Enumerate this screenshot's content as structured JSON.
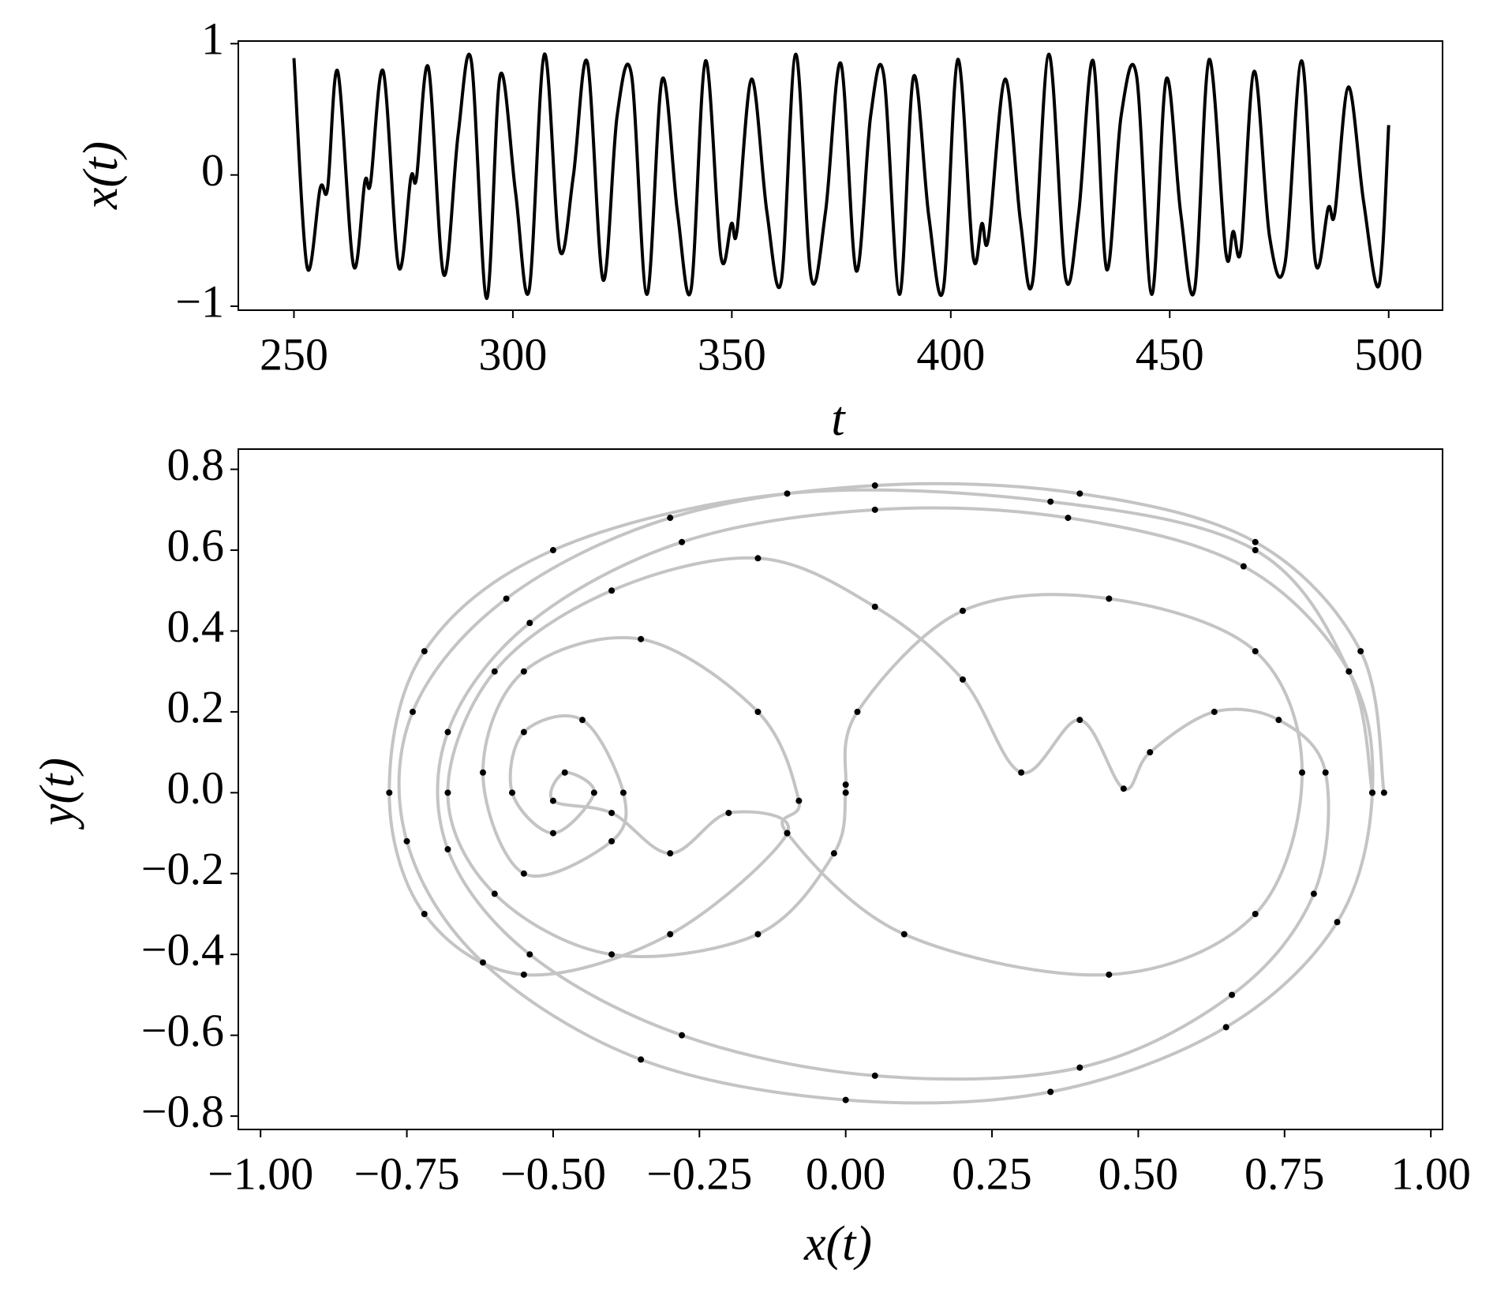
{
  "chart_data": [
    {
      "type": "line",
      "xlabel": "t",
      "ylabel": "x(t)",
      "color": "#000000",
      "xlim": [
        237.3,
        512.3
      ],
      "ylim": [
        -1.03,
        1.02
      ],
      "xticks": [
        250,
        300,
        350,
        400,
        450,
        500
      ],
      "yticks": [
        {
          "value": -1,
          "label": "−1"
        },
        0,
        1
      ],
      "x": [
        250,
        253,
        256,
        257.7,
        260,
        263.6,
        266.2,
        267.5,
        270.4,
        273.9,
        276.7,
        278,
        280.7,
        284.2,
        287.5,
        290.5,
        294,
        297.1,
        300.6,
        303.7,
        307.2,
        310.7,
        313.8,
        317,
        320.6,
        323.8,
        327.1,
        330.6,
        334.1,
        337.6,
        340.7,
        344,
        347.5,
        349.9,
        351.2,
        354.5,
        358,
        361.3,
        364.6,
        368.1,
        371.4,
        374.9,
        378.4,
        381.7,
        384.7,
        388.3,
        391.5,
        395,
        398.3,
        401.6,
        405.1,
        407.1,
        408.6,
        412.4,
        415.9,
        418.7,
        422.4,
        426.2,
        429.2,
        432.5,
        435.6,
        438.9,
        442.4,
        445.9,
        449.2,
        452.5,
        455.7,
        459,
        462.8,
        464.5,
        466.3,
        469.3,
        472.8,
        476.3,
        480.1,
        483.3,
        486.2,
        487.7,
        490.8,
        494.3,
        497.8,
        500
      ],
      "values": [
        0.89,
        -0.7,
        -0.1,
        -0.1,
        0.79,
        -0.69,
        -0.05,
        -0.06,
        0.79,
        -0.7,
        -0.02,
        -0.02,
        0.82,
        -0.76,
        0.31,
        0.87,
        -0.94,
        0.76,
        -0.13,
        -0.88,
        0.92,
        -0.57,
        -0.01,
        0.86,
        -0.8,
        0.45,
        0.76,
        -0.91,
        0.73,
        -0.29,
        -0.87,
        0.87,
        -0.62,
        -0.37,
        -0.42,
        0.73,
        -0.28,
        -0.81,
        0.92,
        -0.78,
        -0.28,
        0.85,
        -0.73,
        0.45,
        0.76,
        -0.91,
        0.75,
        -0.32,
        -0.87,
        0.88,
        -0.62,
        -0.37,
        -0.48,
        0.73,
        -0.35,
        -0.81,
        0.92,
        -0.78,
        -0.29,
        0.87,
        -0.72,
        0.45,
        0.76,
        -0.91,
        0.73,
        -0.29,
        -0.87,
        0.88,
        -0.59,
        -0.43,
        -0.56,
        0.79,
        -0.47,
        -0.68,
        0.87,
        -0.67,
        -0.25,
        -0.29,
        0.67,
        -0.21,
        -0.84,
        0.38
      ]
    },
    {
      "type": "scatter",
      "xlabel": "x(t)",
      "ylabel": "y(t)",
      "color": "#000000",
      "line_color": "#c4c4c4",
      "xlim": [
        -1.038,
        1.02
      ],
      "ylim": [
        -0.833,
        0.85
      ],
      "xticks": [
        {
          "value": -1,
          "label": "−1.00"
        },
        {
          "value": -0.75,
          "label": "−0.75"
        },
        {
          "value": -0.5,
          "label": "−0.50"
        },
        {
          "value": -0.25,
          "label": "−0.25"
        },
        {
          "value": 0,
          "label": "0.00"
        },
        {
          "value": 0.25,
          "label": "0.25"
        },
        {
          "value": 0.5,
          "label": "0.50"
        },
        {
          "value": 0.75,
          "label": "0.75"
        },
        {
          "value": 1,
          "label": "1.00"
        }
      ],
      "yticks": [
        {
          "value": -0.8,
          "label": "−0.8"
        },
        {
          "value": -0.6,
          "label": "−0.6"
        },
        {
          "value": -0.4,
          "label": "−0.4"
        },
        {
          "value": -0.2,
          "label": "−0.2"
        },
        {
          "value": 0,
          "label": "0.0"
        },
        0.2,
        0.4,
        0.6,
        0.8
      ],
      "x": [
        0.92,
        0.88,
        0.7,
        0.4,
        0.05,
        -0.3,
        -0.58,
        -0.74,
        -0.75,
        -0.62,
        -0.35,
        0.0,
        0.35,
        0.65,
        0.84,
        0.9,
        0.86,
        0.68,
        0.38,
        0.05,
        -0.28,
        -0.54,
        -0.68,
        -0.68,
        -0.54,
        -0.28,
        0.05,
        0.4,
        0.66,
        0.8,
        0.82,
        0.74,
        0.63,
        0.52,
        0.475,
        0.4,
        0.3,
        0.2,
        0.05,
        -0.15,
        -0.4,
        -0.6,
        -0.68,
        -0.6,
        -0.4,
        -0.15,
        -0.02,
        0.0,
        0.0,
        0.02,
        0.2,
        0.45,
        0.7,
        0.78,
        0.7,
        0.45,
        0.1,
        -0.1,
        -0.08,
        -0.15,
        -0.35,
        -0.55,
        -0.62,
        -0.55,
        -0.4,
        -0.38,
        -0.45,
        -0.55,
        -0.57,
        -0.5,
        -0.43,
        -0.48,
        -0.5,
        -0.4,
        -0.3,
        -0.2,
        -0.1,
        -0.3,
        -0.55,
        -0.72,
        -0.78,
        -0.72,
        -0.5,
        -0.1,
        0.35,
        0.7,
        0.86,
        0.9
      ],
      "values": [
        0.0,
        0.35,
        0.62,
        0.74,
        0.76,
        0.68,
        0.48,
        0.2,
        -0.12,
        -0.42,
        -0.66,
        -0.76,
        -0.74,
        -0.58,
        -0.32,
        0.0,
        0.3,
        0.56,
        0.68,
        0.7,
        0.62,
        0.42,
        0.15,
        -0.14,
        -0.4,
        -0.6,
        -0.7,
        -0.68,
        -0.5,
        -0.25,
        0.05,
        0.18,
        0.2,
        0.1,
        0.01,
        0.18,
        0.05,
        0.28,
        0.46,
        0.58,
        0.5,
        0.3,
        0.0,
        -0.25,
        -0.4,
        -0.35,
        -0.15,
        0.0,
        0.02,
        0.2,
        0.45,
        0.48,
        0.35,
        0.05,
        -0.3,
        -0.45,
        -0.35,
        -0.1,
        -0.02,
        0.2,
        0.38,
        0.3,
        0.05,
        -0.2,
        -0.12,
        0.0,
        0.18,
        0.15,
        0.0,
        -0.1,
        0.0,
        0.05,
        -0.02,
        -0.05,
        -0.15,
        -0.05,
        -0.1,
        -0.35,
        -0.45,
        -0.3,
        0.0,
        0.35,
        0.6,
        0.74,
        0.72,
        0.6,
        0.3,
        0.0
      ]
    }
  ]
}
